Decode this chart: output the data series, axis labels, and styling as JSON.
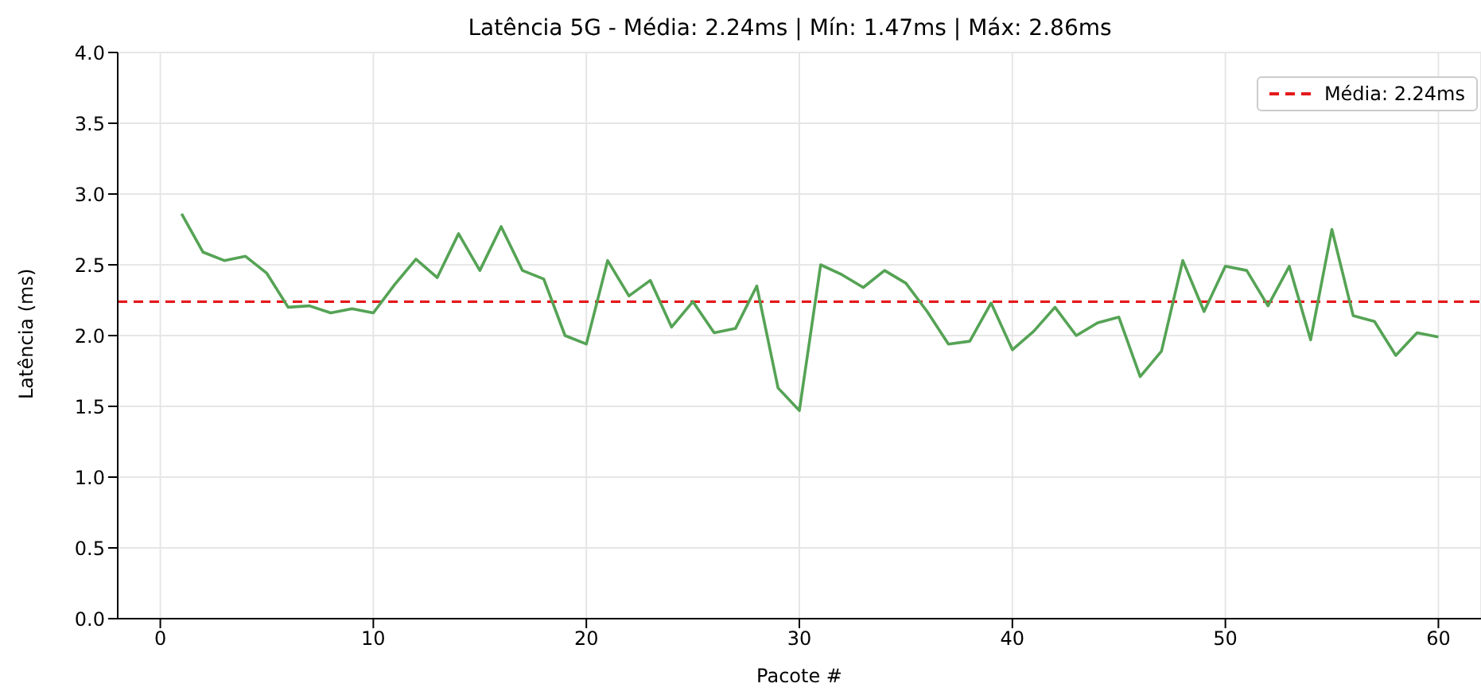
{
  "chart_data": {
    "type": "line",
    "title": "Latência 5G - Média: 2.24ms | Mín: 1.47ms | Máx: 2.86ms",
    "xlabel": "Pacote #",
    "ylabel": "Latência (ms)",
    "x": [
      1,
      2,
      3,
      4,
      5,
      6,
      7,
      8,
      9,
      10,
      11,
      12,
      13,
      14,
      15,
      16,
      17,
      18,
      19,
      20,
      21,
      22,
      23,
      24,
      25,
      26,
      27,
      28,
      29,
      30,
      31,
      32,
      33,
      34,
      35,
      36,
      37,
      38,
      39,
      40,
      41,
      42,
      43,
      44,
      45,
      46,
      47,
      48,
      49,
      50,
      51,
      52,
      53,
      54,
      55,
      56,
      57,
      58,
      59,
      60
    ],
    "series": [
      {
        "color": "#55a355",
        "values": [
          2.86,
          2.59,
          2.53,
          2.56,
          2.44,
          2.2,
          2.21,
          2.16,
          2.19,
          2.16,
          2.36,
          2.54,
          2.41,
          2.72,
          2.46,
          2.77,
          2.46,
          2.4,
          2.0,
          1.94,
          2.53,
          2.28,
          2.39,
          2.06,
          2.24,
          2.02,
          2.05,
          2.35,
          1.63,
          1.47,
          2.5,
          2.43,
          2.34,
          2.46,
          2.37,
          2.17,
          1.94,
          1.96,
          2.23,
          1.9,
          2.03,
          2.2,
          2.0,
          2.09,
          2.13,
          1.71,
          1.89,
          2.53,
          2.17,
          2.49,
          2.46,
          2.21,
          2.49,
          1.97,
          2.75,
          2.14,
          2.1,
          1.86,
          2.02,
          1.99
        ]
      }
    ],
    "xlim": [
      -2,
      62
    ],
    "xticks": [
      0,
      10,
      20,
      30,
      40,
      50,
      60
    ],
    "ylim": [
      0,
      4
    ],
    "yticks": [
      {
        "value": 0,
        "label": "0.0"
      },
      {
        "value": 0.5,
        "label": "0.5"
      },
      {
        "value": 1,
        "label": "1.0"
      },
      {
        "value": 1.5,
        "label": "1.5"
      },
      {
        "value": 2,
        "label": "2.0"
      },
      {
        "value": 2.5,
        "label": "2.5"
      },
      {
        "value": 3,
        "label": "3.0"
      },
      {
        "value": 3.5,
        "label": "3.5"
      },
      {
        "value": 4,
        "label": "4.0"
      }
    ],
    "ref_lines": [
      {
        "axis": "y",
        "value": 2.24,
        "label": "Média: 2.24ms",
        "color": "#e41a1c",
        "line_style": "dashed"
      }
    ],
    "grid": true,
    "legend": "top right",
    "marker": "none",
    "line_style": "solid"
  }
}
